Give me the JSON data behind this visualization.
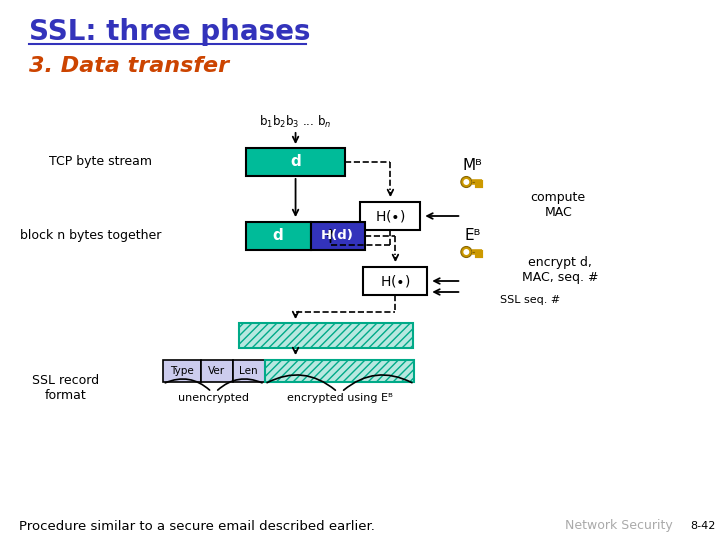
{
  "title": "SSL: three phases",
  "subtitle": "3. Data transfer",
  "bg_color": "#ffffff",
  "title_color": "#3333bb",
  "subtitle_color": "#cc4400",
  "teal_color": "#00bb99",
  "blue_color": "#3333bb",
  "key_color": "#cc9900",
  "hatch_fc": "#b8e8e0",
  "hatch_ec": "#00aa88",
  "tvl_color": "#ccccee",
  "footer_text": "Procedure similar to a secure email described earlier.",
  "net_sec_text": "Network Security",
  "page_label": "8-42",
  "tcp_label": "TCP byte stream",
  "block_label": "block n bytes together",
  "ssl_record_label": "SSL record\nformat",
  "unencrypted_label": "unencrypted",
  "encrypted_label": "encrypted using Eᴮ",
  "compute_mac_label": "compute\nMAC",
  "encrypt_label": "encrypt d,\nMAC, seq. #",
  "ssl_seq_label": "SSL seq. #",
  "mb_label": "Mᴮ",
  "eb_label": "Eᴮ",
  "type_label": "Type",
  "ver_label": "Ver",
  "len_label": "Len"
}
